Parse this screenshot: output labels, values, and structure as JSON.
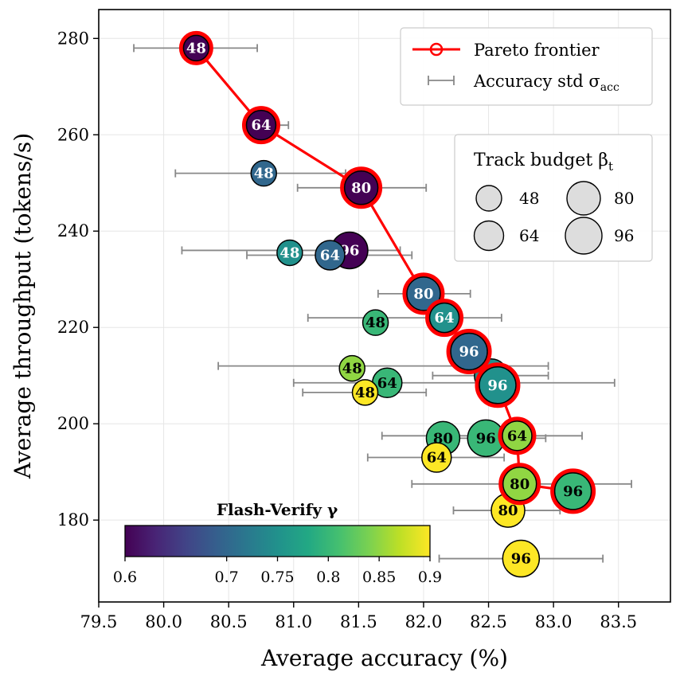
{
  "chart_data": {
    "type": "scatter",
    "xlabel": "Average accuracy (%)",
    "ylabel": "Average throughput (tokens/s)",
    "xlim": [
      79.5,
      83.9
    ],
    "ylim": [
      163,
      286
    ],
    "xticks": [
      "79.5",
      "80.0",
      "80.5",
      "81.0",
      "81.5",
      "82.0",
      "82.5",
      "83.0",
      "83.5"
    ],
    "yticks": [
      "180",
      "200",
      "220",
      "240",
      "260",
      "280"
    ],
    "grid": true,
    "legend": {
      "placement": "top-right",
      "pareto_label": "Pareto frontier",
      "std_label_main": "Accuracy std σ",
      "std_label_sub": "acc",
      "pareto_color": "#ff0000",
      "std_color": "#888888"
    },
    "size_legend": {
      "title_main": "Track budget β",
      "title_sub": "t",
      "entries": [
        "48",
        "64",
        "80",
        "96"
      ]
    },
    "colorbar": {
      "title": "Flash-Verify γ",
      "ticks": [
        "0.6",
        "0.7",
        "0.75",
        "0.8",
        "0.85",
        "0.9"
      ],
      "range": [
        0.6,
        0.9
      ],
      "colormap": "viridis"
    },
    "points": [
      {
        "x": 80.25,
        "y": 278,
        "budget": "48",
        "gamma": 0.6,
        "std": 0.47,
        "pareto": true
      },
      {
        "x": 80.75,
        "y": 262,
        "budget": "64",
        "gamma": 0.6,
        "std": 0.1,
        "pareto": true
      },
      {
        "x": 81.52,
        "y": 249,
        "budget": "80",
        "gamma": 0.6,
        "std": 0.5,
        "pareto": true
      },
      {
        "x": 82.0,
        "y": 227,
        "budget": "80",
        "gamma": 0.7,
        "std": 0.18,
        "pareto": true
      },
      {
        "x": 82.16,
        "y": 222,
        "budget": "64",
        "gamma": 0.75,
        "std": 0.16,
        "pareto": true
      },
      {
        "x": 82.35,
        "y": 215,
        "budget": "96",
        "gamma": 0.7,
        "std": 0.0,
        "pareto": true
      },
      {
        "x": 82.57,
        "y": 208,
        "budget": "96",
        "gamma": 0.75,
        "std": 0.65,
        "pareto": true
      },
      {
        "x": 82.72,
        "y": 197.5,
        "budget": "64",
        "gamma": 0.85,
        "std": 0.22,
        "pareto": true
      },
      {
        "x": 82.74,
        "y": 187.5,
        "budget": "80",
        "gamma": 0.85,
        "std": 0.0,
        "pareto": true
      },
      {
        "x": 83.15,
        "y": 186,
        "budget": "96",
        "gamma": 0.8,
        "std": 0.45,
        "pareto": true
      },
      {
        "x": 80.77,
        "y": 252,
        "budget": "48",
        "gamma": 0.7,
        "std": 0.0,
        "pareto": false
      },
      {
        "x": 81.52,
        "y": 248.5,
        "budget": "80",
        "gamma": 0.6,
        "std": 0.0,
        "pareto": false
      },
      {
        "x": 80.97,
        "y": 235.5,
        "budget": "48",
        "gamma": 0.75,
        "std": 0.0,
        "pareto": false
      },
      {
        "x": 81.43,
        "y": 236,
        "budget": "96",
        "gamma": 0.6,
        "std": 0.0,
        "pareto": false
      },
      {
        "x": 81.28,
        "y": 235,
        "budget": "64",
        "gamma": 0.7,
        "std": 0.0,
        "pareto": false
      },
      {
        "x": 81.63,
        "y": 221,
        "budget": "48",
        "gamma": 0.8,
        "std": 0.0,
        "pareto": false
      },
      {
        "x": 82.52,
        "y": 210,
        "budget": "80",
        "gamma": 0.75,
        "std": 0.0,
        "pareto": false
      },
      {
        "x": 81.45,
        "y": 211.5,
        "budget": "48",
        "gamma": 0.85,
        "std": 0.0,
        "pareto": false
      },
      {
        "x": 81.72,
        "y": 208.5,
        "budget": "64",
        "gamma": 0.8,
        "std": 0.0,
        "pareto": false
      },
      {
        "x": 81.55,
        "y": 206.5,
        "budget": "48",
        "gamma": 0.9,
        "std": 0.0,
        "pareto": false
      },
      {
        "x": 82.15,
        "y": 197,
        "budget": "80",
        "gamma": 0.8,
        "std": 0.0,
        "pareto": false
      },
      {
        "x": 82.48,
        "y": 197,
        "budget": "96",
        "gamma": 0.8,
        "std": 0.0,
        "pareto": false
      },
      {
        "x": 82.1,
        "y": 193,
        "budget": "64",
        "gamma": 0.9,
        "std": 0.0,
        "pareto": false
      },
      {
        "x": 82.65,
        "y": 182,
        "budget": "80",
        "gamma": 0.9,
        "std": 0.0,
        "pareto": false
      },
      {
        "x": 82.75,
        "y": 172,
        "budget": "96",
        "gamma": 0.9,
        "std": 0.0,
        "pareto": false
      }
    ],
    "error_bars": [
      {
        "y": 278,
        "lo": 79.77,
        "hi": 80.72
      },
      {
        "y": 262,
        "lo": 80.66,
        "hi": 80.96
      },
      {
        "y": 252,
        "lo": 80.09,
        "hi": 81.4
      },
      {
        "y": 249,
        "lo": 81.03,
        "hi": 82.02
      },
      {
        "y": 236,
        "lo": 80.14,
        "hi": 81.82
      },
      {
        "y": 235,
        "lo": 80.64,
        "hi": 81.91
      },
      {
        "y": 227,
        "lo": 81.65,
        "hi": 82.36
      },
      {
        "y": 222,
        "lo": 81.11,
        "hi": 82.6
      },
      {
        "y": 212,
        "lo": 80.42,
        "hi": 82.96
      },
      {
        "y": 210,
        "lo": 82.07,
        "hi": 82.96
      },
      {
        "y": 208.5,
        "lo": 81.0,
        "hi": 83.47
      },
      {
        "y": 206.5,
        "lo": 81.07,
        "hi": 82.02
      },
      {
        "y": 197.5,
        "lo": 81.68,
        "hi": 83.22
      },
      {
        "y": 197,
        "lo": 82.2,
        "hi": 82.94
      },
      {
        "y": 193,
        "lo": 81.57,
        "hi": 82.62
      },
      {
        "y": 187.5,
        "lo": 81.91,
        "hi": 83.6
      },
      {
        "y": 182,
        "lo": 82.23,
        "hi": 83.05
      },
      {
        "y": 172,
        "lo": 82.12,
        "hi": 83.38
      }
    ]
  }
}
